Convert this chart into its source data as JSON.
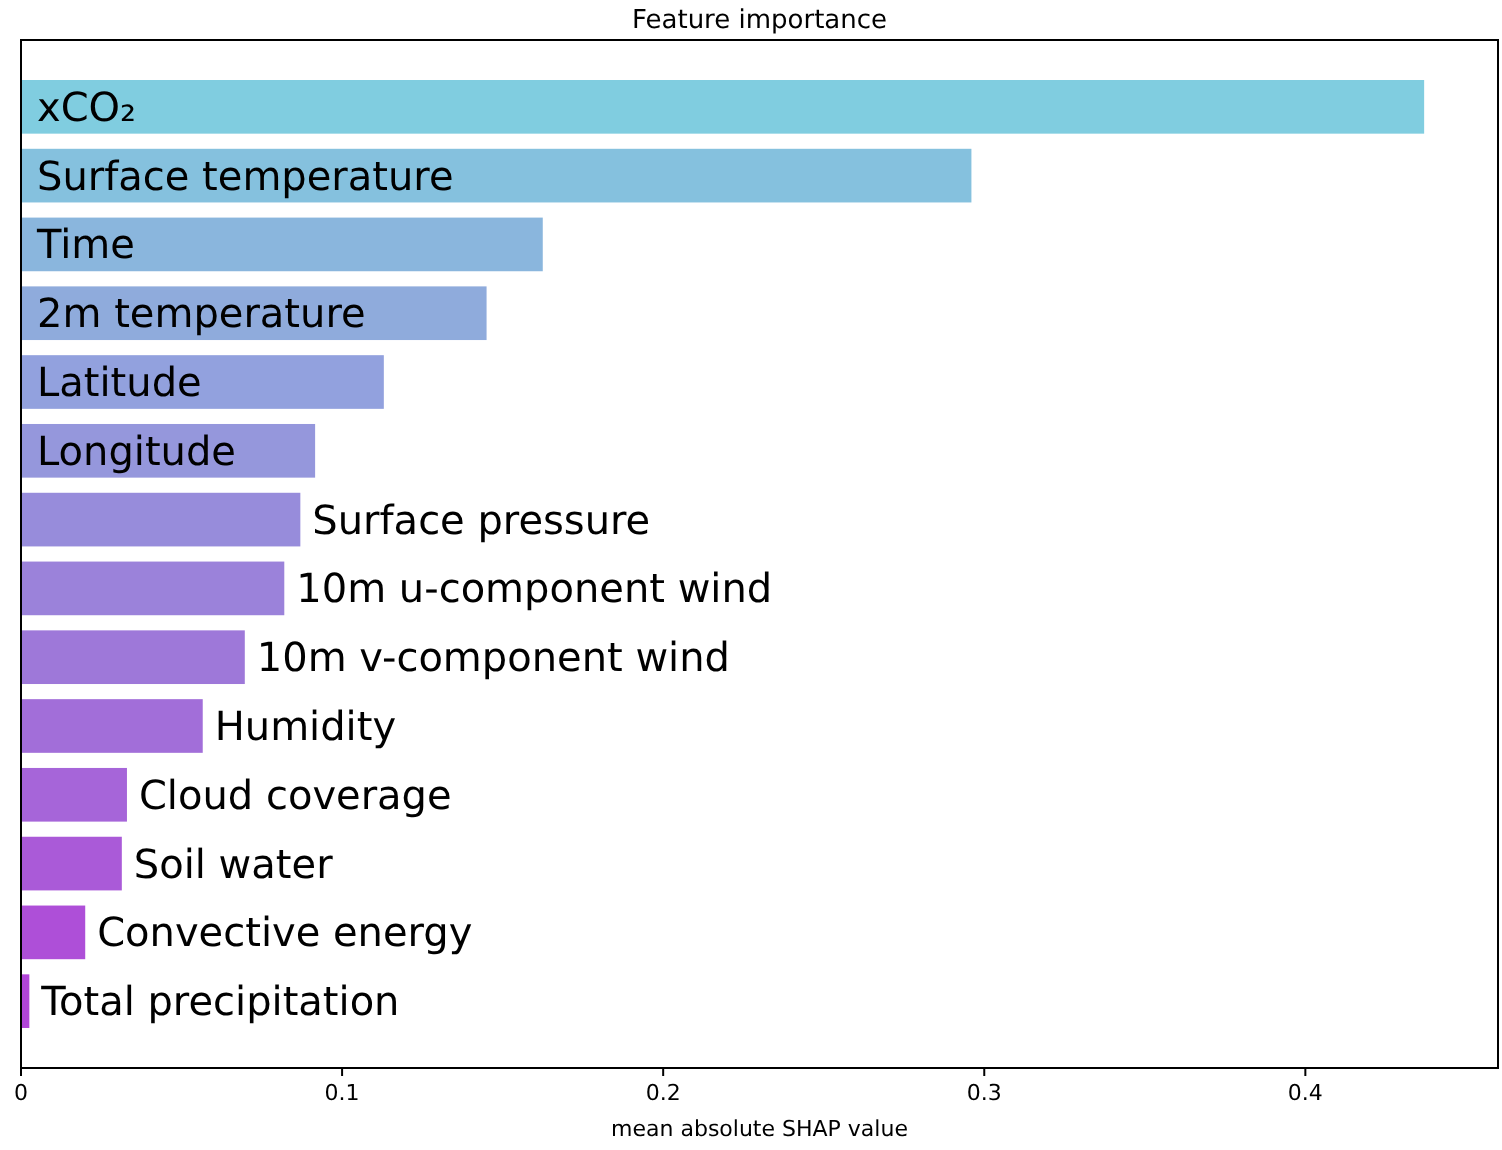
{
  "chart_data": {
    "type": "bar",
    "orientation": "horizontal",
    "title": "Feature importance",
    "xlabel": "mean absolute SHAP value",
    "categories": [
      "xCO₂",
      "Surface temperature",
      "Time",
      "2m temperature",
      "Latitude",
      "Longitude",
      "Surface pressure",
      "10m u-component wind",
      "10m v-component wind",
      "Humidity",
      "Cloud coverage",
      "Soil water",
      "Convective energy",
      "Total precipitation"
    ],
    "values": [
      0.437,
      0.296,
      0.1625,
      0.145,
      0.113,
      0.0916,
      0.087,
      0.082,
      0.0697,
      0.0566,
      0.033,
      0.0314,
      0.02,
      0.0026
    ],
    "colors": [
      "#80cde0",
      "#85c1de",
      "#8ab6dd",
      "#8fabdc",
      "#92a1de",
      "#9597dc",
      "#978cdb",
      "#9b82da",
      "#9e78d9",
      "#a26ed9",
      "#a665d9",
      "#aa5ad8",
      "#ae4fd8",
      "#b145d8"
    ],
    "xlim": [
      0,
      0.46
    ],
    "xticks": [
      0,
      0.1,
      0.2,
      0.3,
      0.4
    ],
    "grid": false
  }
}
